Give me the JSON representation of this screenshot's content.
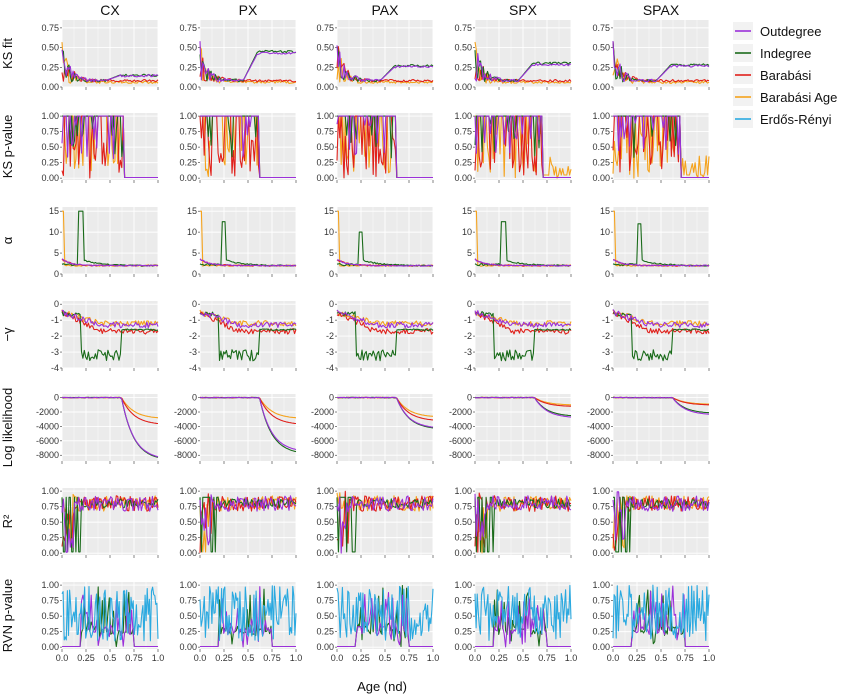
{
  "chart_data": {
    "type": "line",
    "layout": "facet-grid",
    "columns": [
      "CX",
      "PX",
      "PAX",
      "SPX",
      "SPAX"
    ],
    "xlabel": "Age (nd)",
    "x_ticks": [
      "0.0",
      "0.25",
      "0.5",
      "0.75",
      "1.0"
    ],
    "xlim": [
      0,
      1
    ],
    "grid": true,
    "legend_position": "right",
    "legend": [
      {
        "name": "Outdegree",
        "color": "#9b30d9"
      },
      {
        "name": "Indegree",
        "color": "#1a6b1a"
      },
      {
        "name": "Barabási",
        "color": "#e0201b"
      },
      {
        "name": "Barabási Age",
        "color": "#f5a21b"
      },
      {
        "name": "Erdős-Rényi",
        "color": "#2aa9e0"
      }
    ],
    "rows": [
      {
        "label": "KS fit",
        "ylim": [
          0,
          0.85
        ],
        "y_ticks": [
          "0.00",
          "0.25",
          "0.50",
          "0.75"
        ],
        "series": [
          "Outdegree",
          "Indegree",
          "Barabási",
          "Barabási Age"
        ]
      },
      {
        "label": "KS p-value",
        "ylim": [
          -0.03,
          1.05
        ],
        "y_ticks": [
          "0.00",
          "0.25",
          "0.50",
          "0.75",
          "1.00"
        ],
        "series": [
          "Outdegree",
          "Indegree",
          "Barabási",
          "Barabási Age"
        ]
      },
      {
        "label": "α",
        "ylim": [
          0,
          16
        ],
        "y_ticks": [
          "0",
          "5",
          "10",
          "15"
        ],
        "series": [
          "Outdegree",
          "Indegree",
          "Barabási",
          "Barabási Age"
        ]
      },
      {
        "label": "−γ",
        "ylim": [
          -4,
          0.2
        ],
        "y_ticks": [
          "-4",
          "-3",
          "-2",
          "-1",
          "0"
        ],
        "series": [
          "Outdegree",
          "Indegree",
          "Barabási",
          "Barabási Age"
        ]
      },
      {
        "label": "Log likelihood",
        "ylim": [
          -8800,
          500
        ],
        "y_ticks": [
          "-8000",
          "-6000",
          "-4000",
          "-2000",
          "0"
        ],
        "series": [
          "Outdegree",
          "Indegree",
          "Barabási",
          "Barabási Age"
        ]
      },
      {
        "label": "R²",
        "ylim": [
          -0.03,
          1.05
        ],
        "y_ticks": [
          "0.00",
          "0.25",
          "0.50",
          "0.75",
          "1.00"
        ],
        "series": [
          "Outdegree",
          "Indegree",
          "Barabási",
          "Barabási Age"
        ]
      },
      {
        "label": "RVN p-value",
        "ylim": [
          -0.03,
          1.05
        ],
        "y_ticks": [
          "0.00",
          "0.25",
          "0.50",
          "0.75",
          "1.00"
        ],
        "series": [
          "Erdős-Rényi",
          "Outdegree",
          "Indegree"
        ]
      }
    ],
    "summary_values": {
      "KS fit": {
        "final": {
          "Outdegree": 0.2,
          "Indegree": 0.25,
          "Barabási": 0.08,
          "Barabási Age": 0.06
        },
        "indegree_final_by_panel": {
          "CX": 0.15,
          "PX": 0.45,
          "PAX": 0.27,
          "SPX": 0.3,
          "SPAX": 0.28
        }
      },
      "KS p-value": {
        "drop_age": {
          "CX": 0.65,
          "PX": 0.62,
          "PAX": 0.62,
          "SPX": 0.7,
          "SPAX": 0.7
        }
      },
      "α": {
        "indegree_peak": {
          "CX": 15,
          "PX": 12.5,
          "PAX": 10,
          "SPX": 12.5,
          "SPAX": 12
        },
        "indegree_peak_age": {
          "CX": 0.2,
          "PX": 0.25,
          "PAX": 0.25,
          "SPX": 0.3,
          "SPAX": 0.28
        },
        "final": 2
      },
      "−γ": {
        "final": {
          "Outdegree": -1.3,
          "Indegree": -1.6,
          "Barabási": -1.7,
          "Barabási Age": -1.2
        }
      },
      "Log likelihood": {
        "final": {
          "CX": {
            "Outdegree": -8200,
            "Indegree": -8300,
            "Barabási": -3600,
            "Barabási Age": -2800
          },
          "PX": {
            "Outdegree": -7200,
            "Indegree": -7500,
            "Barabási": -3600,
            "Barabási Age": -2800
          },
          "PAX": {
            "Outdegree": -4100,
            "Indegree": -4200,
            "Barabási": -3100,
            "Barabási Age": -2600
          },
          "SPX": {
            "Outdegree": -2700,
            "Indegree": -2500,
            "Barabási": -1200,
            "Barabási Age": -1000
          },
          "SPAX": {
            "Outdegree": -2300,
            "Indegree": -2100,
            "Barabási": -1000,
            "Barabási Age": -900
          }
        }
      },
      "R²": {
        "typical": 0.8
      },
      "RVN p-value": {
        "erdos_renyi_range": [
          0.1,
          1.0
        ]
      }
    }
  }
}
